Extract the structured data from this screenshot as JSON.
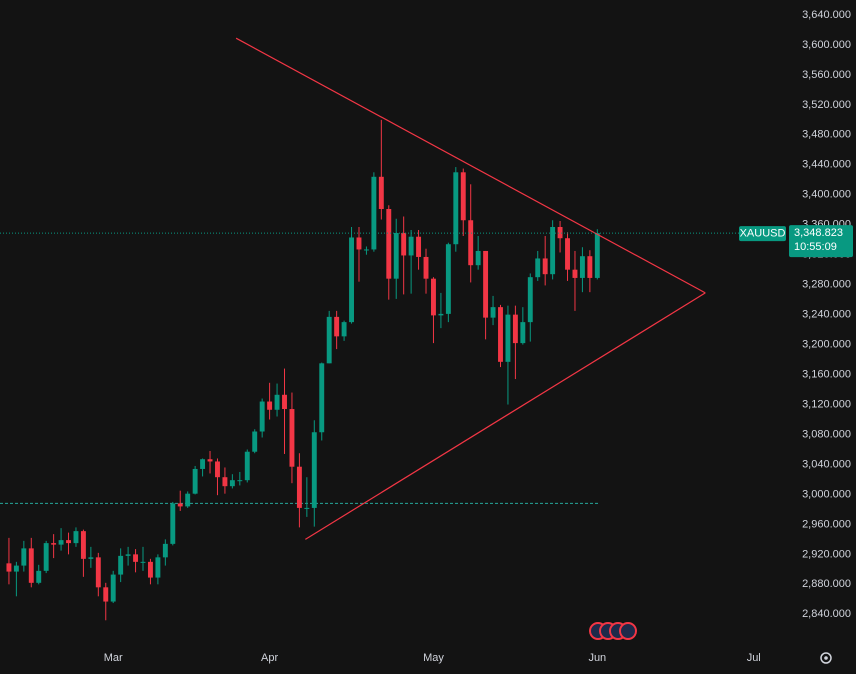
{
  "chart_data": {
    "type": "candlestick",
    "symbol": "XAUUSD",
    "up_color": "#089981",
    "down_color": "#f23645",
    "ohlc": [
      [
        2908,
        2942,
        2880,
        2897
      ],
      [
        2897,
        2910,
        2864,
        2905
      ],
      [
        2905,
        2938,
        2897,
        2928
      ],
      [
        2928,
        2942,
        2876,
        2882
      ],
      [
        2882,
        2906,
        2880,
        2898
      ],
      [
        2898,
        2938,
        2895,
        2935
      ],
      [
        2935,
        2947,
        2915,
        2933
      ],
      [
        2933,
        2955,
        2925,
        2939
      ],
      [
        2939,
        2949,
        2920,
        2935
      ],
      [
        2935,
        2956,
        2930,
        2951
      ],
      [
        2951,
        2953,
        2890,
        2914
      ],
      [
        2914,
        2930,
        2902,
        2916
      ],
      [
        2916,
        2922,
        2864,
        2876
      ],
      [
        2876,
        2882,
        2832,
        2857
      ],
      [
        2857,
        2898,
        2855,
        2893
      ],
      [
        2893,
        2928,
        2883,
        2918
      ],
      [
        2918,
        2930,
        2905,
        2920
      ],
      [
        2920,
        2927,
        2896,
        2910
      ],
      [
        2910,
        2930,
        2898,
        2910
      ],
      [
        2910,
        2914,
        2880,
        2889
      ],
      [
        2889,
        2920,
        2880,
        2916
      ],
      [
        2916,
        2940,
        2905,
        2934
      ],
      [
        2934,
        2990,
        2932,
        2988
      ],
      [
        2988,
        3005,
        2978,
        2984
      ],
      [
        2984,
        3004,
        2982,
        3001
      ],
      [
        3001,
        3038,
        3000,
        3034
      ],
      [
        3034,
        3048,
        3024,
        3047
      ],
      [
        3047,
        3058,
        3028,
        3044
      ],
      [
        3044,
        3048,
        2999,
        3023
      ],
      [
        3023,
        3036,
        3001,
        3011
      ],
      [
        3011,
        3027,
        3008,
        3019
      ],
      [
        3019,
        3030,
        3012,
        3019
      ],
      [
        3019,
        3060,
        3016,
        3057
      ],
      [
        3057,
        3087,
        3055,
        3084
      ],
      [
        3084,
        3128,
        3076,
        3124
      ],
      [
        3124,
        3149,
        3100,
        3113
      ],
      [
        3113,
        3148,
        3104,
        3133
      ],
      [
        3133,
        3168,
        3054,
        3114
      ],
      [
        3114,
        3136,
        3015,
        3037
      ],
      [
        3037,
        3055,
        2956,
        2982
      ],
      [
        2982,
        3023,
        2970,
        2982
      ],
      [
        2982,
        3099,
        2957,
        3083
      ],
      [
        3083,
        3176,
        3072,
        3175
      ],
      [
        3175,
        3245,
        3175,
        3237
      ],
      [
        3237,
        3245,
        3194,
        3211
      ],
      [
        3211,
        3232,
        3205,
        3230
      ],
      [
        3230,
        3357,
        3228,
        3343
      ],
      [
        3343,
        3357,
        3284,
        3327
      ],
      [
        3327,
        3331,
        3320,
        3327
      ],
      [
        3327,
        3430,
        3324,
        3424
      ],
      [
        3424,
        3500,
        3367,
        3381
      ],
      [
        3381,
        3386,
        3260,
        3288
      ],
      [
        3288,
        3368,
        3261,
        3349
      ],
      [
        3349,
        3371,
        3267,
        3319
      ],
      [
        3319,
        3353,
        3268,
        3344
      ],
      [
        3344,
        3353,
        3300,
        3317
      ],
      [
        3317,
        3328,
        3268,
        3288
      ],
      [
        3288,
        3290,
        3202,
        3239
      ],
      [
        3239,
        3269,
        3222,
        3241
      ],
      [
        3241,
        3336,
        3230,
        3334
      ],
      [
        3334,
        3437,
        3324,
        3430
      ],
      [
        3430,
        3435,
        3345,
        3366
      ],
      [
        3366,
        3414,
        3283,
        3306
      ],
      [
        3306,
        3345,
        3300,
        3325
      ],
      [
        3325,
        3325,
        3207,
        3236
      ],
      [
        3236,
        3265,
        3226,
        3250
      ],
      [
        3250,
        3253,
        3170,
        3177
      ],
      [
        3177,
        3252,
        3120,
        3240
      ],
      [
        3240,
        3252,
        3154,
        3202
      ],
      [
        3202,
        3250,
        3200,
        3230
      ],
      [
        3230,
        3295,
        3204,
        3290
      ],
      [
        3290,
        3325,
        3285,
        3315
      ],
      [
        3315,
        3345,
        3279,
        3294
      ],
      [
        3294,
        3366,
        3287,
        3357
      ],
      [
        3357,
        3365,
        3323,
        3342
      ],
      [
        3342,
        3350,
        3285,
        3300
      ],
      [
        3300,
        3325,
        3245,
        3289
      ],
      [
        3289,
        3330,
        3270,
        3318
      ],
      [
        3318,
        3326,
        3270,
        3289
      ],
      [
        3289,
        3354,
        3287,
        3348.823
      ]
    ],
    "xlim": [
      -1.2,
      104.2
    ],
    "xticks": [
      {
        "value": 14,
        "label": "Mar"
      },
      {
        "value": 35,
        "label": "Apr"
      },
      {
        "value": 57,
        "label": "May"
      },
      {
        "value": 79,
        "label": "Jun"
      },
      {
        "value": 100,
        "label": "Jul"
      }
    ],
    "ylim": [
      2799,
      3660
    ],
    "yticks": [
      {
        "value": 2840,
        "label": "2,840.000"
      },
      {
        "value": 2880,
        "label": "2,880.000"
      },
      {
        "value": 2920,
        "label": "2,920.000"
      },
      {
        "value": 2960,
        "label": "2,960.000"
      },
      {
        "value": 3000,
        "label": "3,000.000"
      },
      {
        "value": 3040,
        "label": "3,040.000"
      },
      {
        "value": 3080,
        "label": "3,080.000"
      },
      {
        "value": 3120,
        "label": "3,120.000"
      },
      {
        "value": 3160,
        "label": "3,160.000"
      },
      {
        "value": 3200,
        "label": "3,200.000"
      },
      {
        "value": 3240,
        "label": "3,240.000"
      },
      {
        "value": 3280,
        "label": "3,280.000"
      },
      {
        "value": 3320,
        "label": "3,320.000"
      },
      {
        "value": 3360,
        "label": "3,360.000"
      },
      {
        "value": 3400,
        "label": "3,400.000"
      },
      {
        "value": 3440,
        "label": "3,440.000"
      },
      {
        "value": 3480,
        "label": "3,480.000"
      },
      {
        "value": 3520,
        "label": "3,520.000"
      },
      {
        "value": 3560,
        "label": "3,560.000"
      },
      {
        "value": 3600,
        "label": "3,600.000"
      },
      {
        "value": 3640,
        "label": "3,640.000"
      }
    ],
    "grid": false,
    "price_tag": {
      "price": "3,348.823",
      "countdown": "10:55:09",
      "color": "#089981"
    },
    "hline": {
      "value": 2988,
      "color": "#26a69a"
    },
    "trendline_color": "#f23645",
    "trendlines": [
      {
        "from": [
          30.5,
          3609
        ],
        "to": [
          93.5,
          3269
        ]
      },
      {
        "from": [
          39.8,
          2940
        ],
        "to": [
          93.5,
          3269
        ]
      }
    ]
  }
}
